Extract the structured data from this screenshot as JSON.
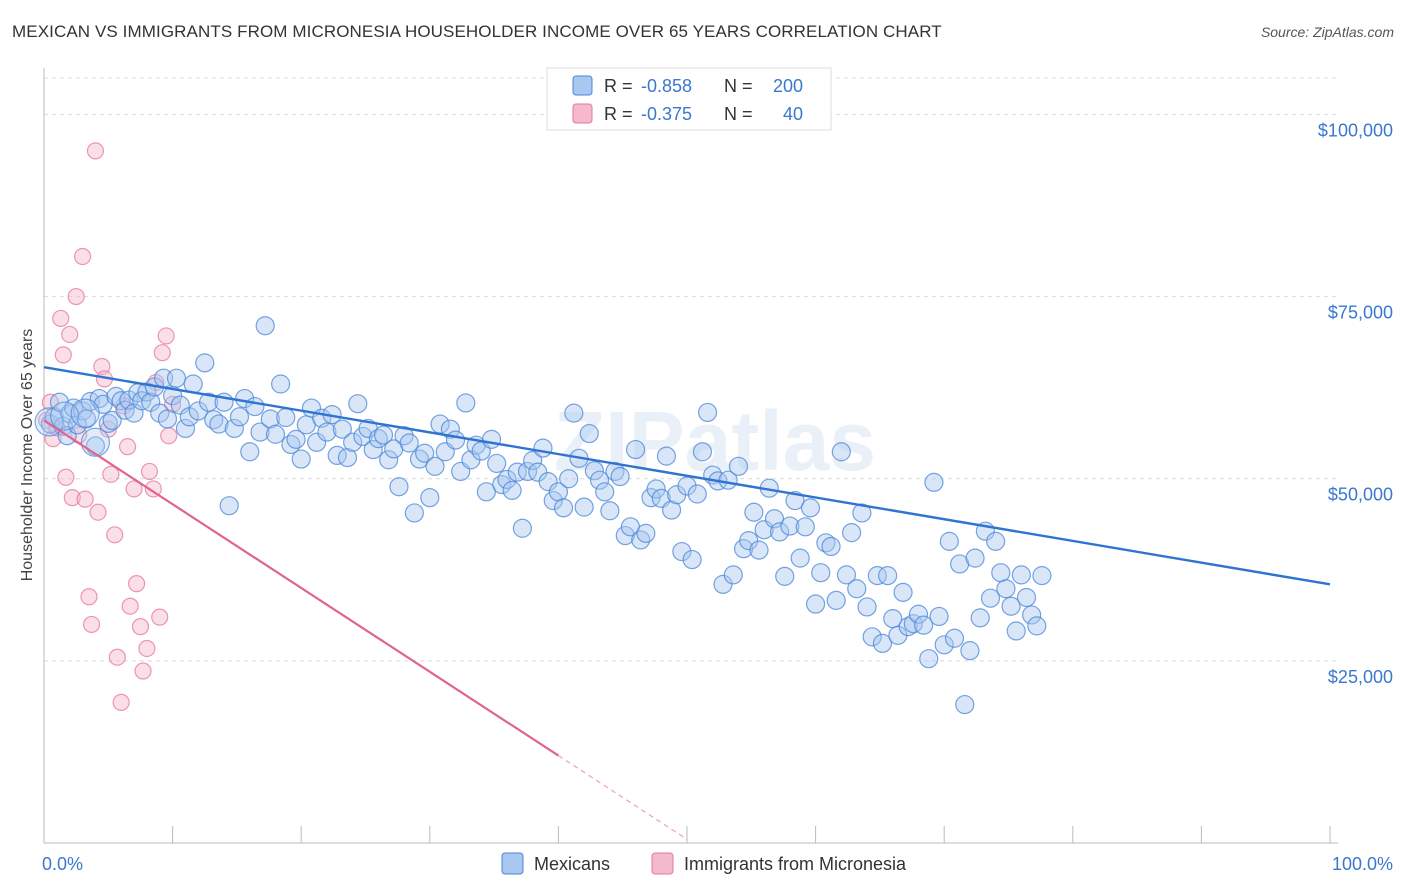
{
  "header": {
    "title": "MEXICAN VS IMMIGRANTS FROM MICRONESIA HOUSEHOLDER INCOME OVER 65 YEARS CORRELATION CHART",
    "source": "Source: ZipAtlas.com"
  },
  "colors": {
    "blue": "#4a86d8",
    "blue_fill": "#a9c8f0",
    "blue_line": "#2f74d0",
    "pink": "#e6769f",
    "pink_fill": "#f4b9cc",
    "pink_line": "#e0648f",
    "tick_label": "#3a78d0",
    "grid": "#d9d9d9"
  },
  "chart_data": {
    "type": "scatter",
    "watermark": "ZIPatlas",
    "ylabel": "Householder Income Over 65 years",
    "xlim": [
      0,
      100
    ],
    "ylim": [
      0,
      105000
    ],
    "y_gridlines": [
      25000,
      50000,
      75000,
      100000
    ],
    "y_ticks": [
      {
        "value": 25000,
        "label": "$25,000"
      },
      {
        "value": 50000,
        "label": "$50,000"
      },
      {
        "value": 75000,
        "label": "$75,000"
      },
      {
        "value": 100000,
        "label": "$100,000"
      }
    ],
    "x_tick_labels": [
      {
        "value": 0,
        "label": "0.0%"
      },
      {
        "value": 100,
        "label": "100.0%"
      }
    ],
    "x_minor_ticks": [
      10,
      20,
      30,
      40,
      50,
      60,
      70,
      80,
      90,
      100
    ],
    "legend_top": [
      {
        "r_label": "R =",
        "r_value": "-0.858",
        "n_label": "N =",
        "n_value": "200"
      },
      {
        "r_label": "R =",
        "r_value": "-0.375",
        "n_label": "N =",
        "n_value": "40"
      }
    ],
    "legend_bottom": [
      "Mexicans",
      "Immigrants from Micronesia"
    ],
    "series": [
      {
        "name": "Mexicans",
        "trend": {
          "x": [
            0,
            100
          ],
          "y": [
            65300,
            35500
          ]
        },
        "points": [
          [
            0.5,
            57500
          ],
          [
            0.8,
            58500
          ],
          [
            1.2,
            60500
          ],
          [
            1.5,
            57200
          ],
          [
            1.8,
            55900
          ],
          [
            2.0,
            58900
          ],
          [
            2.3,
            59700
          ],
          [
            2.6,
            57400
          ],
          [
            3.0,
            59300
          ],
          [
            3.3,
            58200
          ],
          [
            3.6,
            60600
          ],
          [
            4.0,
            54500
          ],
          [
            4.3,
            61000
          ],
          [
            4.6,
            60200
          ],
          [
            5.0,
            57600
          ],
          [
            5.3,
            58000
          ],
          [
            5.6,
            61300
          ],
          [
            6.0,
            60700
          ],
          [
            6.3,
            59400
          ],
          [
            6.6,
            60800
          ],
          [
            7.0,
            59000
          ],
          [
            7.3,
            61800
          ],
          [
            7.6,
            60700
          ],
          [
            8.0,
            61900
          ],
          [
            8.3,
            60500
          ],
          [
            8.6,
            62600
          ],
          [
            9.0,
            59000
          ],
          [
            9.3,
            63800
          ],
          [
            9.6,
            58200
          ],
          [
            10.0,
            61400
          ],
          [
            10.3,
            63800
          ],
          [
            10.6,
            60100
          ],
          [
            11.0,
            56900
          ],
          [
            11.3,
            58500
          ],
          [
            11.6,
            63000
          ],
          [
            12.0,
            59300
          ],
          [
            12.5,
            65900
          ],
          [
            12.8,
            60500
          ],
          [
            13.2,
            58100
          ],
          [
            13.6,
            57500
          ],
          [
            14.0,
            60500
          ],
          [
            14.4,
            46300
          ],
          [
            14.8,
            56900
          ],
          [
            15.2,
            58500
          ],
          [
            15.6,
            61000
          ],
          [
            16.0,
            53700
          ],
          [
            16.4,
            59900
          ],
          [
            16.8,
            56400
          ],
          [
            17.2,
            71000
          ],
          [
            17.6,
            58200
          ],
          [
            18.0,
            56100
          ],
          [
            18.4,
            63000
          ],
          [
            18.8,
            58400
          ],
          [
            19.2,
            54700
          ],
          [
            19.6,
            55400
          ],
          [
            20.0,
            52700
          ],
          [
            20.4,
            57400
          ],
          [
            20.8,
            59700
          ],
          [
            21.2,
            55000
          ],
          [
            21.6,
            58300
          ],
          [
            22.0,
            56400
          ],
          [
            22.4,
            58800
          ],
          [
            22.8,
            53200
          ],
          [
            23.2,
            56800
          ],
          [
            23.6,
            52900
          ],
          [
            24.0,
            55000
          ],
          [
            24.4,
            60300
          ],
          [
            24.8,
            55800
          ],
          [
            25.2,
            56900
          ],
          [
            25.6,
            54000
          ],
          [
            26.0,
            55500
          ],
          [
            26.4,
            56000
          ],
          [
            26.8,
            52600
          ],
          [
            27.2,
            54100
          ],
          [
            27.6,
            48900
          ],
          [
            28.0,
            55900
          ],
          [
            28.4,
            54900
          ],
          [
            28.8,
            45300
          ],
          [
            29.2,
            52700
          ],
          [
            29.6,
            53500
          ],
          [
            30.0,
            47400
          ],
          [
            30.4,
            51700
          ],
          [
            30.8,
            57500
          ],
          [
            31.2,
            53700
          ],
          [
            31.6,
            56800
          ],
          [
            32.0,
            55300
          ],
          [
            32.4,
            51000
          ],
          [
            32.8,
            60400
          ],
          [
            33.2,
            52600
          ],
          [
            33.6,
            54600
          ],
          [
            34.0,
            53800
          ],
          [
            34.4,
            48200
          ],
          [
            34.8,
            55400
          ],
          [
            35.2,
            52100
          ],
          [
            35.6,
            49200
          ],
          [
            36.0,
            49900
          ],
          [
            36.4,
            48400
          ],
          [
            36.8,
            50900
          ],
          [
            37.2,
            43200
          ],
          [
            37.6,
            51000
          ],
          [
            38.0,
            52500
          ],
          [
            38.4,
            50900
          ],
          [
            38.8,
            54200
          ],
          [
            39.2,
            49600
          ],
          [
            39.6,
            47000
          ],
          [
            40.0,
            48200
          ],
          [
            40.4,
            46000
          ],
          [
            40.8,
            50000
          ],
          [
            41.2,
            59000
          ],
          [
            41.6,
            52800
          ],
          [
            42.0,
            46100
          ],
          [
            42.4,
            56200
          ],
          [
            42.8,
            51100
          ],
          [
            43.2,
            49800
          ],
          [
            43.6,
            48200
          ],
          [
            44.0,
            45600
          ],
          [
            44.4,
            51000
          ],
          [
            44.8,
            50300
          ],
          [
            45.2,
            42200
          ],
          [
            45.6,
            43400
          ],
          [
            46.0,
            54000
          ],
          [
            46.4,
            41600
          ],
          [
            46.8,
            42500
          ],
          [
            47.2,
            47400
          ],
          [
            47.6,
            48600
          ],
          [
            48.0,
            47300
          ],
          [
            48.4,
            53100
          ],
          [
            48.8,
            45700
          ],
          [
            49.2,
            47800
          ],
          [
            49.6,
            40000
          ],
          [
            50.0,
            49000
          ],
          [
            50.4,
            38900
          ],
          [
            50.8,
            47900
          ],
          [
            51.2,
            53700
          ],
          [
            51.6,
            59100
          ],
          [
            52.0,
            50500
          ],
          [
            52.4,
            49700
          ],
          [
            52.8,
            35500
          ],
          [
            53.2,
            49800
          ],
          [
            53.6,
            36800
          ],
          [
            54.0,
            51700
          ],
          [
            54.4,
            40400
          ],
          [
            54.8,
            41500
          ],
          [
            55.2,
            45400
          ],
          [
            55.6,
            40200
          ],
          [
            56.0,
            43000
          ],
          [
            56.4,
            48700
          ],
          [
            56.8,
            44500
          ],
          [
            57.2,
            42700
          ],
          [
            57.6,
            36600
          ],
          [
            58.0,
            43500
          ],
          [
            58.4,
            47000
          ],
          [
            58.8,
            39100
          ],
          [
            59.2,
            43400
          ],
          [
            59.6,
            46000
          ],
          [
            60.0,
            32800
          ],
          [
            60.4,
            37100
          ],
          [
            60.8,
            41200
          ],
          [
            61.2,
            40700
          ],
          [
            61.6,
            33300
          ],
          [
            62.0,
            53700
          ],
          [
            62.4,
            36800
          ],
          [
            62.8,
            42600
          ],
          [
            63.2,
            34900
          ],
          [
            63.6,
            45300
          ],
          [
            64.0,
            32400
          ],
          [
            64.4,
            28300
          ],
          [
            64.8,
            36700
          ],
          [
            65.2,
            27400
          ],
          [
            65.6,
            36700
          ],
          [
            66.0,
            30800
          ],
          [
            66.4,
            28500
          ],
          [
            66.8,
            34400
          ],
          [
            67.2,
            29700
          ],
          [
            67.6,
            30100
          ],
          [
            68.0,
            31400
          ],
          [
            68.4,
            29900
          ],
          [
            68.8,
            25300
          ],
          [
            69.2,
            49500
          ],
          [
            69.6,
            31100
          ],
          [
            70.0,
            27200
          ],
          [
            70.4,
            41400
          ],
          [
            70.8,
            28100
          ],
          [
            71.2,
            38300
          ],
          [
            71.6,
            19000
          ],
          [
            72.0,
            26400
          ],
          [
            72.4,
            39100
          ],
          [
            72.8,
            30900
          ],
          [
            73.2,
            42800
          ],
          [
            73.6,
            33600
          ],
          [
            74.0,
            41400
          ],
          [
            74.4,
            37100
          ],
          [
            74.8,
            34900
          ],
          [
            75.2,
            32500
          ],
          [
            75.6,
            29100
          ],
          [
            76.0,
            36800
          ],
          [
            76.4,
            33700
          ],
          [
            76.8,
            31300
          ],
          [
            77.2,
            29800
          ],
          [
            77.6,
            36700
          ]
        ]
      },
      {
        "name": "Immigrants from Micronesia",
        "trend": {
          "x": [
            0,
            40
          ],
          "y": [
            58000,
            12000
          ]
        },
        "trend_dashed": {
          "x": [
            40,
            50
          ],
          "y": [
            12000,
            500
          ]
        },
        "points": [
          [
            0.2,
            58000
          ],
          [
            0.5,
            60500
          ],
          [
            0.7,
            55500
          ],
          [
            1.0,
            57000
          ],
          [
            1.3,
            72000
          ],
          [
            1.5,
            67000
          ],
          [
            1.7,
            50200
          ],
          [
            2.0,
            69800
          ],
          [
            2.2,
            47400
          ],
          [
            2.5,
            75000
          ],
          [
            2.7,
            56000
          ],
          [
            3.0,
            80500
          ],
          [
            3.2,
            47200
          ],
          [
            3.5,
            33800
          ],
          [
            3.7,
            30000
          ],
          [
            4.0,
            95000
          ],
          [
            4.2,
            45400
          ],
          [
            4.5,
            65400
          ],
          [
            4.7,
            63700
          ],
          [
            5.0,
            56800
          ],
          [
            5.2,
            50600
          ],
          [
            5.5,
            42300
          ],
          [
            5.7,
            25500
          ],
          [
            6.0,
            19300
          ],
          [
            6.2,
            60000
          ],
          [
            6.5,
            54400
          ],
          [
            6.7,
            32500
          ],
          [
            7.0,
            48600
          ],
          [
            7.2,
            35600
          ],
          [
            7.5,
            29700
          ],
          [
            7.7,
            23600
          ],
          [
            8.0,
            26700
          ],
          [
            8.2,
            51000
          ],
          [
            8.5,
            48600
          ],
          [
            8.7,
            63200
          ],
          [
            9.0,
            31000
          ],
          [
            9.2,
            67300
          ],
          [
            9.5,
            69600
          ],
          [
            9.7,
            55900
          ],
          [
            10.0,
            60200
          ]
        ]
      }
    ]
  }
}
